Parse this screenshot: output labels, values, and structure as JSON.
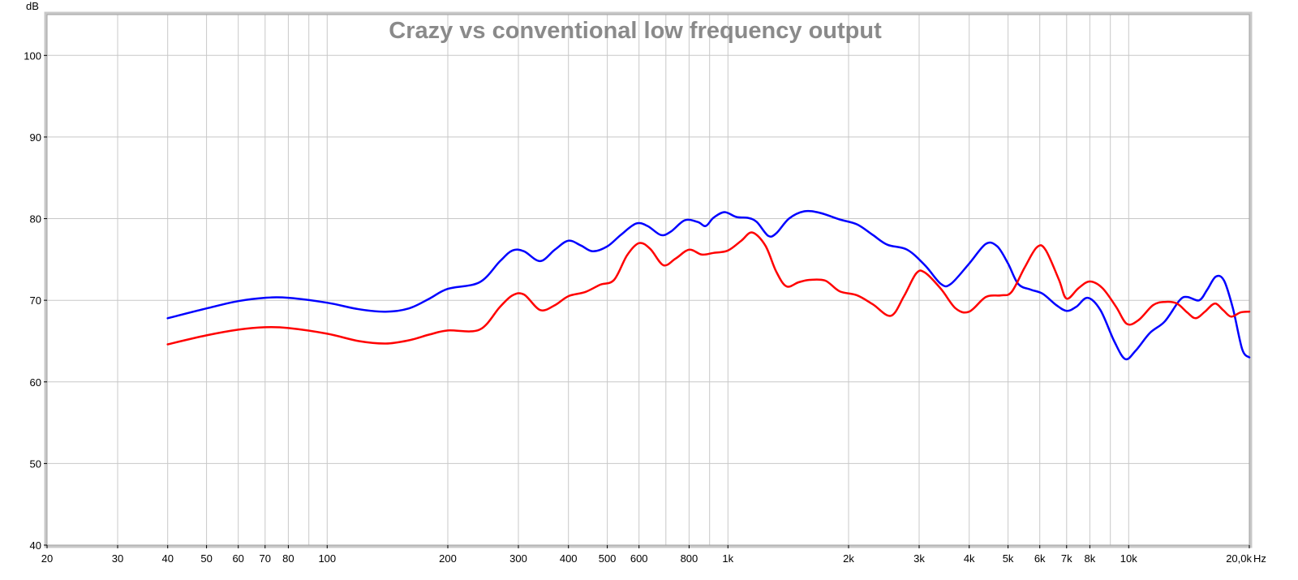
{
  "chart_data": {
    "type": "line",
    "title": "Crazy vs conventional low frequency output",
    "ylabel": "dB",
    "xunit": "Hz",
    "xscale": "log",
    "xlim": [
      20,
      20000
    ],
    "ylim": [
      40,
      105
    ],
    "grid": true,
    "x_ticks": [
      {
        "value": 20,
        "label": "20"
      },
      {
        "value": 30,
        "label": "30"
      },
      {
        "value": 40,
        "label": "40"
      },
      {
        "value": 50,
        "label": "50"
      },
      {
        "value": 60,
        "label": "60"
      },
      {
        "value": 70,
        "label": "70"
      },
      {
        "value": 80,
        "label": "80"
      },
      {
        "value": 100,
        "label": "100"
      },
      {
        "value": 200,
        "label": "200"
      },
      {
        "value": 300,
        "label": "300"
      },
      {
        "value": 400,
        "label": "400"
      },
      {
        "value": 500,
        "label": "500"
      },
      {
        "value": 600,
        "label": "600"
      },
      {
        "value": 800,
        "label": "800"
      },
      {
        "value": 1000,
        "label": "1k"
      },
      {
        "value": 2000,
        "label": "2k"
      },
      {
        "value": 3000,
        "label": "3k"
      },
      {
        "value": 4000,
        "label": "4k"
      },
      {
        "value": 5000,
        "label": "5k"
      },
      {
        "value": 6000,
        "label": "6k"
      },
      {
        "value": 7000,
        "label": "7k"
      },
      {
        "value": 8000,
        "label": "8k"
      },
      {
        "value": 10000,
        "label": "10k"
      },
      {
        "value": 20000,
        "label": "20,0k"
      }
    ],
    "x_gridlines": [
      20,
      30,
      40,
      50,
      60,
      70,
      80,
      90,
      100,
      200,
      300,
      400,
      500,
      600,
      700,
      800,
      900,
      1000,
      2000,
      3000,
      4000,
      5000,
      6000,
      7000,
      8000,
      9000,
      10000,
      20000
    ],
    "y_ticks": [
      40,
      50,
      60,
      70,
      80,
      90,
      100
    ],
    "series": [
      {
        "color": "#0000ff",
        "points": [
          [
            40,
            67.8
          ],
          [
            50,
            69.0
          ],
          [
            60,
            69.9
          ],
          [
            70,
            70.3
          ],
          [
            80,
            70.3
          ],
          [
            100,
            69.7
          ],
          [
            120,
            68.9
          ],
          [
            140,
            68.6
          ],
          [
            160,
            69.0
          ],
          [
            180,
            70.2
          ],
          [
            200,
            71.4
          ],
          [
            240,
            72.2
          ],
          [
            270,
            74.8
          ],
          [
            290,
            76.1
          ],
          [
            310,
            76.0
          ],
          [
            340,
            74.8
          ],
          [
            370,
            76.2
          ],
          [
            400,
            77.3
          ],
          [
            430,
            76.7
          ],
          [
            460,
            76.0
          ],
          [
            500,
            76.6
          ],
          [
            540,
            78.0
          ],
          [
            590,
            79.4
          ],
          [
            630,
            79.1
          ],
          [
            680,
            78.0
          ],
          [
            720,
            78.4
          ],
          [
            780,
            79.8
          ],
          [
            840,
            79.6
          ],
          [
            880,
            79.1
          ],
          [
            920,
            80.1
          ],
          [
            980,
            80.8
          ],
          [
            1050,
            80.2
          ],
          [
            1120,
            80.1
          ],
          [
            1180,
            79.6
          ],
          [
            1260,
            77.9
          ],
          [
            1320,
            78.2
          ],
          [
            1420,
            80.0
          ],
          [
            1550,
            80.9
          ],
          [
            1700,
            80.7
          ],
          [
            1900,
            79.9
          ],
          [
            2100,
            79.3
          ],
          [
            2300,
            78.0
          ],
          [
            2500,
            76.8
          ],
          [
            2800,
            76.2
          ],
          [
            3100,
            74.3
          ],
          [
            3400,
            72.0
          ],
          [
            3600,
            72.0
          ],
          [
            4000,
            74.5
          ],
          [
            4400,
            76.9
          ],
          [
            4700,
            76.6
          ],
          [
            5000,
            74.5
          ],
          [
            5300,
            72.0
          ],
          [
            5700,
            71.3
          ],
          [
            6100,
            70.8
          ],
          [
            6600,
            69.4
          ],
          [
            7000,
            68.7
          ],
          [
            7400,
            69.2
          ],
          [
            7900,
            70.3
          ],
          [
            8500,
            68.8
          ],
          [
            9200,
            65.0
          ],
          [
            9800,
            62.8
          ],
          [
            10400,
            63.8
          ],
          [
            11300,
            66.0
          ],
          [
            12300,
            67.4
          ],
          [
            13400,
            70.0
          ],
          [
            14000,
            70.4
          ],
          [
            15000,
            70.0
          ],
          [
            15700,
            71.3
          ],
          [
            16500,
            72.9
          ],
          [
            17300,
            72.4
          ],
          [
            18200,
            69.0
          ],
          [
            19200,
            64.0
          ],
          [
            20000,
            63.0
          ]
        ]
      },
      {
        "color": "#ff0000",
        "points": [
          [
            40,
            64.6
          ],
          [
            50,
            65.7
          ],
          [
            60,
            66.4
          ],
          [
            70,
            66.7
          ],
          [
            80,
            66.6
          ],
          [
            100,
            65.9
          ],
          [
            120,
            65.0
          ],
          [
            140,
            64.7
          ],
          [
            160,
            65.1
          ],
          [
            180,
            65.8
          ],
          [
            200,
            66.3
          ],
          [
            240,
            66.4
          ],
          [
            270,
            69.2
          ],
          [
            290,
            70.6
          ],
          [
            310,
            70.7
          ],
          [
            340,
            68.8
          ],
          [
            370,
            69.4
          ],
          [
            400,
            70.5
          ],
          [
            440,
            71.0
          ],
          [
            480,
            71.9
          ],
          [
            520,
            72.5
          ],
          [
            560,
            75.5
          ],
          [
            600,
            77.0
          ],
          [
            640,
            76.3
          ],
          [
            690,
            74.3
          ],
          [
            740,
            75.1
          ],
          [
            800,
            76.2
          ],
          [
            860,
            75.6
          ],
          [
            920,
            75.8
          ],
          [
            1000,
            76.1
          ],
          [
            1080,
            77.3
          ],
          [
            1150,
            78.3
          ],
          [
            1240,
            76.7
          ],
          [
            1320,
            73.5
          ],
          [
            1400,
            71.7
          ],
          [
            1500,
            72.2
          ],
          [
            1600,
            72.5
          ],
          [
            1750,
            72.4
          ],
          [
            1900,
            71.1
          ],
          [
            2100,
            70.6
          ],
          [
            2300,
            69.5
          ],
          [
            2550,
            68.1
          ],
          [
            2750,
            70.5
          ],
          [
            2950,
            73.3
          ],
          [
            3100,
            73.4
          ],
          [
            3400,
            71.4
          ],
          [
            3700,
            69.0
          ],
          [
            4000,
            68.6
          ],
          [
            4400,
            70.4
          ],
          [
            4800,
            70.6
          ],
          [
            5100,
            71.0
          ],
          [
            5500,
            74.0
          ],
          [
            5900,
            76.5
          ],
          [
            6200,
            76.2
          ],
          [
            6700,
            72.5
          ],
          [
            7000,
            70.2
          ],
          [
            7500,
            71.5
          ],
          [
            8000,
            72.3
          ],
          [
            8600,
            71.5
          ],
          [
            9300,
            69.2
          ],
          [
            9900,
            67.1
          ],
          [
            10600,
            67.6
          ],
          [
            11500,
            69.4
          ],
          [
            12300,
            69.8
          ],
          [
            13200,
            69.6
          ],
          [
            14000,
            68.5
          ],
          [
            14700,
            67.8
          ],
          [
            15500,
            68.6
          ],
          [
            16400,
            69.6
          ],
          [
            17200,
            68.8
          ],
          [
            18000,
            68.0
          ],
          [
            19000,
            68.5
          ],
          [
            20000,
            68.6
          ]
        ]
      }
    ]
  }
}
